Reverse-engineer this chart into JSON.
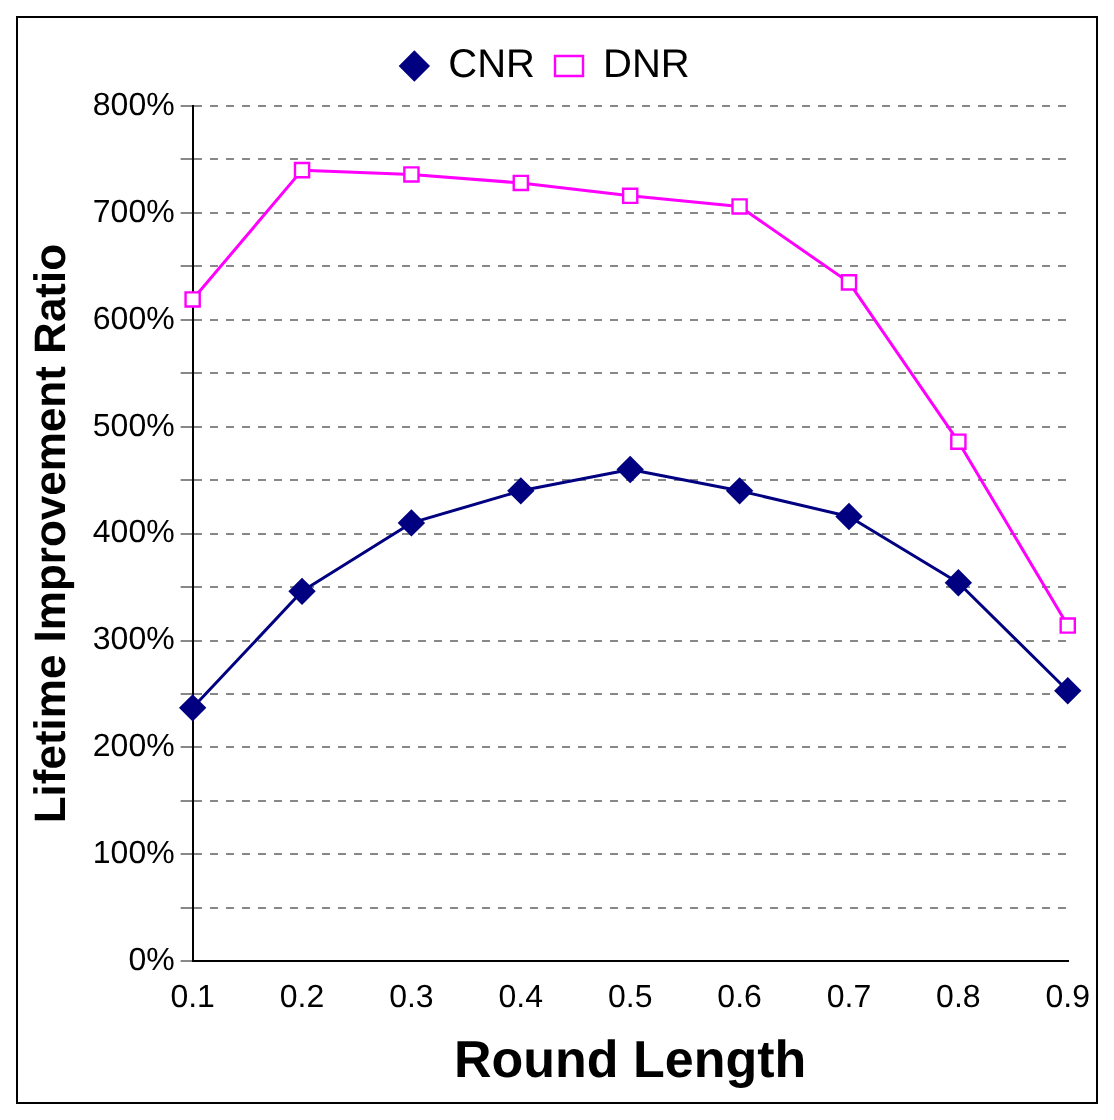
{
  "chart_data": {
    "type": "line",
    "xlabel": "Round Length",
    "ylabel": "Lifetime Improvement Ratio",
    "categories": [
      "0.1",
      "0.2",
      "0.3",
      "0.4",
      "0.5",
      "0.6",
      "0.7",
      "0.8",
      "0.9"
    ],
    "series": [
      {
        "name": "CNR",
        "color": "#000080",
        "marker": "diamond",
        "values": [
          237,
          346,
          410,
          440,
          460,
          440,
          416,
          354,
          253
        ]
      },
      {
        "name": "DNR",
        "color": "#ff00ff",
        "marker": "square",
        "values": [
          619,
          740,
          736,
          728,
          716,
          706,
          635,
          486,
          314
        ]
      }
    ],
    "ylim": [
      0,
      800
    ],
    "yticks": [
      {
        "value": 0,
        "label": "0%"
      },
      {
        "value": 50,
        "label": null
      },
      {
        "value": 100,
        "label": "100%"
      },
      {
        "value": 150,
        "label": null
      },
      {
        "value": 200,
        "label": "200%"
      },
      {
        "value": 250,
        "label": null
      },
      {
        "value": 300,
        "label": "300%"
      },
      {
        "value": 350,
        "label": null
      },
      {
        "value": 400,
        "label": "400%"
      },
      {
        "value": 450,
        "label": null
      },
      {
        "value": 500,
        "label": "500%"
      },
      {
        "value": 550,
        "label": null
      },
      {
        "value": 600,
        "label": "600%"
      },
      {
        "value": 650,
        "label": null
      },
      {
        "value": 700,
        "label": "700%"
      },
      {
        "value": 750,
        "label": null
      },
      {
        "value": 800,
        "label": "800%"
      }
    ],
    "grid": "y",
    "legend": "top",
    "line_style": "solid"
  }
}
